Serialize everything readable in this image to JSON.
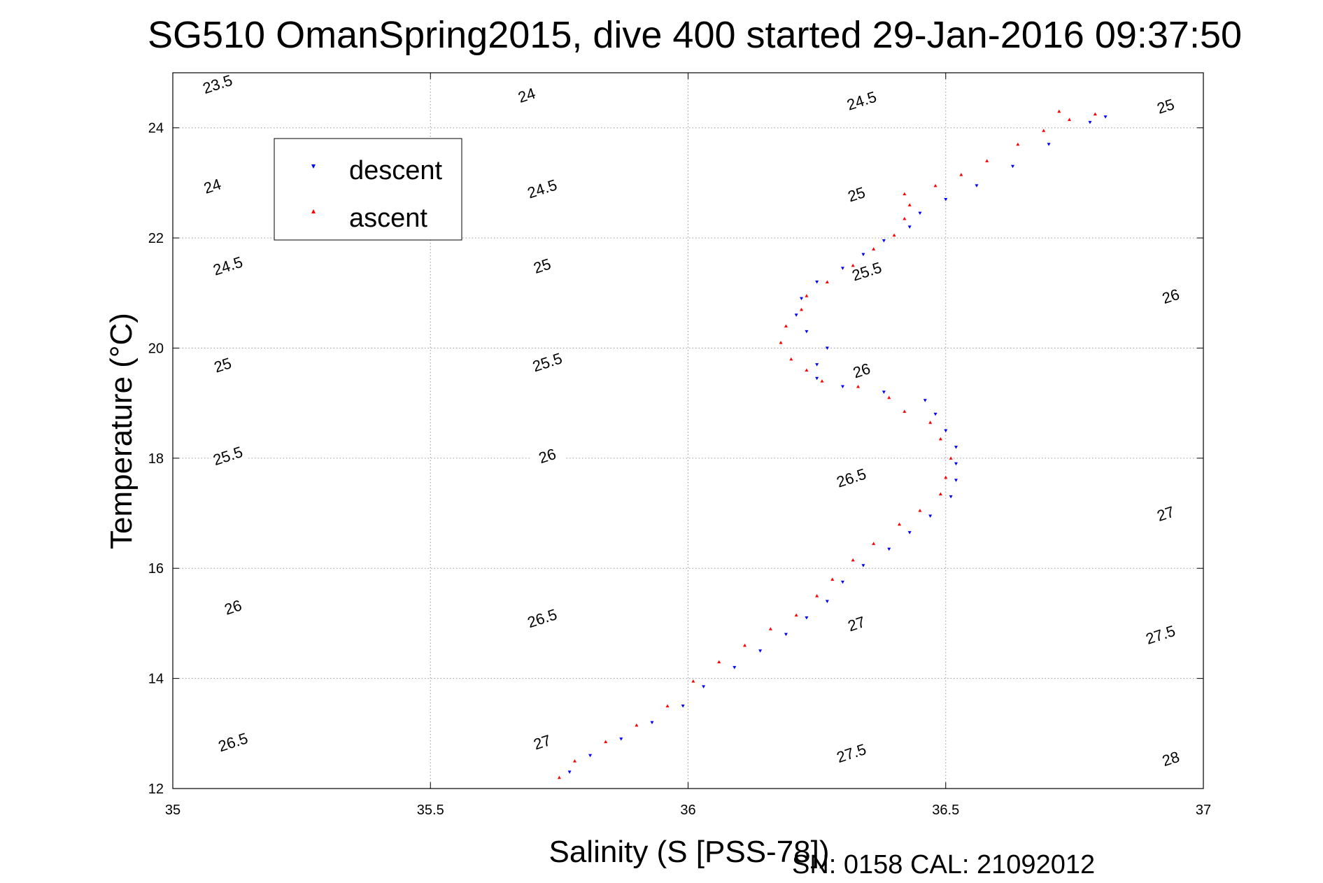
{
  "chart_data": {
    "type": "scatter",
    "title": "SG510 OmanSpring2015, dive 400 started 29-Jan-2016 09:37:50",
    "xlabel": "Salinity (S [PSS-78])",
    "ylabel": "Temperature (°C)",
    "xlim": [
      35,
      37
    ],
    "ylim": [
      12,
      25
    ],
    "xticks": [
      35,
      35.5,
      36,
      36.5,
      37
    ],
    "xtick_labels": [
      "35",
      "35.5",
      "36",
      "36.5",
      "37"
    ],
    "yticks": [
      12,
      14,
      16,
      18,
      20,
      22,
      24
    ],
    "ytick_labels": [
      "12",
      "14",
      "16",
      "18",
      "20",
      "22",
      "24"
    ],
    "grid": true,
    "legend_position": "top-left",
    "footer": "SN: 0158  CAL: 21092012",
    "density_contours": {
      "levels": [
        23.5,
        24,
        24.5,
        25,
        25.5,
        26,
        26.5,
        27,
        27.5,
        28
      ],
      "labels": [
        {
          "text": "23.5",
          "s": 35.09,
          "t": 24.7
        },
        {
          "text": "24",
          "s": 35.69,
          "t": 24.5
        },
        {
          "text": "24.5",
          "s": 36.34,
          "t": 24.4
        },
        {
          "text": "25",
          "s": 36.93,
          "t": 24.3
        },
        {
          "text": "24",
          "s": 35.08,
          "t": 22.85
        },
        {
          "text": "24.5",
          "s": 35.72,
          "t": 22.8
        },
        {
          "text": "25",
          "s": 36.33,
          "t": 22.7
        },
        {
          "text": "24.5",
          "s": 35.11,
          "t": 21.4
        },
        {
          "text": "25",
          "s": 35.72,
          "t": 21.4
        },
        {
          "text": "25.5",
          "s": 36.35,
          "t": 21.3
        },
        {
          "text": "26",
          "s": 36.94,
          "t": 20.85
        },
        {
          "text": "25",
          "s": 35.1,
          "t": 19.6
        },
        {
          "text": "25.5",
          "s": 35.73,
          "t": 19.65
        },
        {
          "text": "26",
          "s": 36.34,
          "t": 19.5
        },
        {
          "text": "25.5",
          "s": 35.11,
          "t": 17.95
        },
        {
          "text": "26",
          "s": 35.73,
          "t": 17.95
        },
        {
          "text": "26.5",
          "s": 36.32,
          "t": 17.55
        },
        {
          "text": "27",
          "s": 36.93,
          "t": 16.9
        },
        {
          "text": "26",
          "s": 35.12,
          "t": 15.2
        },
        {
          "text": "26.5",
          "s": 35.72,
          "t": 15.0
        },
        {
          "text": "27",
          "s": 36.33,
          "t": 14.9
        },
        {
          "text": "27.5",
          "s": 36.92,
          "t": 14.7
        },
        {
          "text": "26.5",
          "s": 35.12,
          "t": 12.75
        },
        {
          "text": "27",
          "s": 35.72,
          "t": 12.75
        },
        {
          "text": "27.5",
          "s": 36.32,
          "t": 12.55
        },
        {
          "text": "28",
          "s": 36.94,
          "t": 12.45
        }
      ]
    },
    "series": [
      {
        "name": "descent",
        "color": "#0000ff",
        "marker": "triangle-down",
        "points": [
          [
            35.77,
            12.3
          ],
          [
            35.81,
            12.6
          ],
          [
            35.87,
            12.9
          ],
          [
            35.93,
            13.2
          ],
          [
            35.99,
            13.5
          ],
          [
            36.03,
            13.85
          ],
          [
            36.09,
            14.2
          ],
          [
            36.14,
            14.5
          ],
          [
            36.19,
            14.8
          ],
          [
            36.23,
            15.1
          ],
          [
            36.27,
            15.4
          ],
          [
            36.3,
            15.75
          ],
          [
            36.34,
            16.05
          ],
          [
            36.39,
            16.35
          ],
          [
            36.43,
            16.65
          ],
          [
            36.47,
            16.95
          ],
          [
            36.51,
            17.3
          ],
          [
            36.52,
            17.6
          ],
          [
            36.52,
            17.9
          ],
          [
            36.52,
            18.2
          ],
          [
            36.5,
            18.5
          ],
          [
            36.48,
            18.8
          ],
          [
            36.46,
            19.05
          ],
          [
            36.38,
            19.2
          ],
          [
            36.3,
            19.3
          ],
          [
            36.25,
            19.45
          ],
          [
            36.25,
            19.7
          ],
          [
            36.27,
            20.0
          ],
          [
            36.23,
            20.3
          ],
          [
            36.21,
            20.6
          ],
          [
            36.22,
            20.9
          ],
          [
            36.25,
            21.2
          ],
          [
            36.3,
            21.45
          ],
          [
            36.34,
            21.7
          ],
          [
            36.38,
            21.95
          ],
          [
            36.43,
            22.2
          ],
          [
            36.45,
            22.45
          ],
          [
            36.5,
            22.7
          ],
          [
            36.56,
            22.95
          ],
          [
            36.63,
            23.3
          ],
          [
            36.7,
            23.7
          ],
          [
            36.78,
            24.1
          ],
          [
            36.81,
            24.2
          ]
        ]
      },
      {
        "name": "ascent",
        "color": "#ff0000",
        "marker": "triangle-up",
        "points": [
          [
            35.75,
            12.2
          ],
          [
            35.78,
            12.5
          ],
          [
            35.84,
            12.85
          ],
          [
            35.9,
            13.15
          ],
          [
            35.96,
            13.5
          ],
          [
            36.01,
            13.95
          ],
          [
            36.06,
            14.3
          ],
          [
            36.11,
            14.6
          ],
          [
            36.16,
            14.9
          ],
          [
            36.21,
            15.15
          ],
          [
            36.25,
            15.5
          ],
          [
            36.28,
            15.8
          ],
          [
            36.32,
            16.15
          ],
          [
            36.36,
            16.45
          ],
          [
            36.41,
            16.8
          ],
          [
            36.45,
            17.05
          ],
          [
            36.49,
            17.35
          ],
          [
            36.5,
            17.65
          ],
          [
            36.51,
            18.0
          ],
          [
            36.49,
            18.35
          ],
          [
            36.47,
            18.65
          ],
          [
            36.42,
            18.85
          ],
          [
            36.39,
            19.1
          ],
          [
            36.33,
            19.3
          ],
          [
            36.26,
            19.4
          ],
          [
            36.23,
            19.6
          ],
          [
            36.2,
            19.8
          ],
          [
            36.18,
            20.1
          ],
          [
            36.19,
            20.4
          ],
          [
            36.22,
            20.7
          ],
          [
            36.23,
            20.95
          ],
          [
            36.27,
            21.2
          ],
          [
            36.32,
            21.5
          ],
          [
            36.36,
            21.8
          ],
          [
            36.4,
            22.05
          ],
          [
            36.42,
            22.35
          ],
          [
            36.43,
            22.6
          ],
          [
            36.42,
            22.8
          ],
          [
            36.48,
            22.95
          ],
          [
            36.53,
            23.15
          ],
          [
            36.58,
            23.4
          ],
          [
            36.64,
            23.7
          ],
          [
            36.69,
            23.95
          ],
          [
            36.74,
            24.15
          ],
          [
            36.79,
            24.25
          ],
          [
            36.72,
            24.3
          ]
        ]
      }
    ]
  }
}
